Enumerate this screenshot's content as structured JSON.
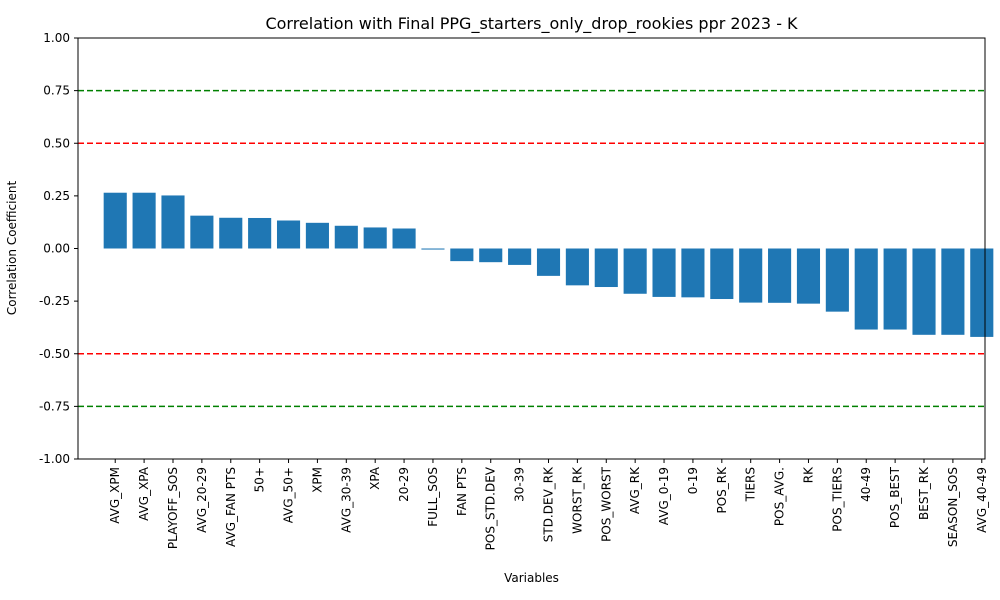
{
  "chart_data": {
    "type": "bar",
    "title": "Correlation with Final PPG_starters_only_drop_rookies ppr 2023 - K",
    "xlabel": "Variables",
    "ylabel": "Correlation Coefficient",
    "ylim": [
      -1.0,
      1.0
    ],
    "yticks": [
      "-1.00",
      "-0.75",
      "-0.50",
      "-0.25",
      "0.00",
      "0.25",
      "0.50",
      "0.75",
      "1.00"
    ],
    "grid": false,
    "bar_color": "#1f77b4",
    "categories": [
      "AVG_XPM",
      "AVG_XPA",
      "PLAYOFF_SOS",
      "AVG_20-29",
      "AVG_FAN PTS",
      "50+",
      "AVG_50+",
      "XPM",
      "AVG_30-39",
      "XPA",
      "20-29",
      "FULL_SOS",
      "FAN PTS",
      "POS_STD.DEV",
      "30-39",
      "STD.DEV_RK",
      "WORST_RK",
      "POS_WORST",
      "AVG_RK",
      "AVG_0-19",
      "0-19",
      "POS_RK",
      "TIERS",
      "POS_AVG.",
      "RK",
      "POS_TIERS",
      "40-49",
      "POS_BEST",
      "BEST_RK",
      "SEASON_SOS",
      "AVG_40-49"
    ],
    "values": [
      0.265,
      0.265,
      0.252,
      0.156,
      0.146,
      0.145,
      0.133,
      0.122,
      0.108,
      0.1,
      0.095,
      -0.005,
      -0.06,
      -0.065,
      -0.078,
      -0.13,
      -0.175,
      -0.183,
      -0.215,
      -0.23,
      -0.232,
      -0.24,
      -0.257,
      -0.258,
      -0.262,
      -0.3,
      -0.385,
      -0.385,
      -0.41,
      -0.41,
      -0.42
    ],
    "reference_lines": [
      {
        "y": 0.75,
        "color": "#008000",
        "style": "dashed"
      },
      {
        "y": 0.5,
        "color": "#ff0000",
        "style": "dashed"
      },
      {
        "y": -0.5,
        "color": "#ff0000",
        "style": "dashed"
      },
      {
        "y": -0.75,
        "color": "#008000",
        "style": "dashed"
      }
    ]
  }
}
